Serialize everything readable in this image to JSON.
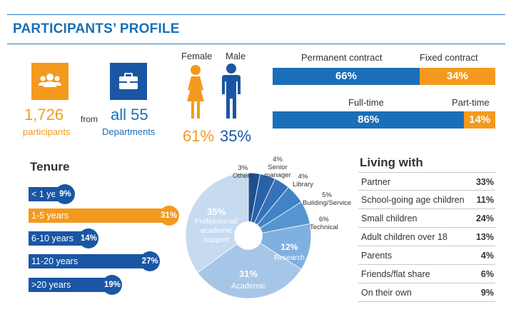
{
  "title": "PARTICIPANTS’ PROFILE",
  "colors": {
    "blue": "#1a6fb8",
    "dark_blue": "#1a56a4",
    "orange": "#f39a1e"
  },
  "participants": {
    "count": "1,726",
    "count_label": "participants",
    "from": "from",
    "departments": "all 55",
    "departments_label": "Departments"
  },
  "gender": {
    "female_label": "Female",
    "male_label": "Male",
    "female_pct": "61%",
    "male_pct": "35%"
  },
  "contract": {
    "permanent_label": "Permanent contract",
    "fixed_label": "Fixed contract",
    "permanent": 66,
    "fixed": 34,
    "permanent_text": "66%",
    "fixed_text": "34%"
  },
  "hours": {
    "full_label": "Full-time",
    "part_label": "Part-time",
    "full": 86,
    "part": 14,
    "full_text": "86%",
    "part_text": "14%"
  },
  "tenure": {
    "title": "Tenure",
    "items": [
      {
        "label": "< 1 year",
        "value": 9,
        "text": "9%"
      },
      {
        "label": "1-5 years",
        "value": 31,
        "text": "31%"
      },
      {
        "label": "6-10 years",
        "value": 14,
        "text": "14%"
      },
      {
        "label": "11-20 years",
        "value": 27,
        "text": "27%"
      },
      {
        "label": ">20 years",
        "value": 19,
        "text": "19%"
      }
    ]
  },
  "roles": {
    "others": {
      "pct": "3%",
      "label": "Others",
      "value": 3
    },
    "senior": {
      "pct": "4%",
      "label": "Senior manager",
      "value": 4
    },
    "library": {
      "pct": "4%",
      "label": "Library",
      "value": 4
    },
    "building": {
      "pct": "5%",
      "label": "Building/Service",
      "value": 5
    },
    "technical": {
      "pct": "6%",
      "label": "Technical",
      "value": 6
    },
    "research": {
      "pct": "12%",
      "label": "Research",
      "value": 12
    },
    "academic": {
      "pct": "31%",
      "label": "Academic",
      "value": 31
    },
    "professional": {
      "pct": "35%",
      "label": "Professional/ academic support",
      "value": 35
    }
  },
  "living": {
    "title": "Living with",
    "rows": [
      {
        "label": "Partner",
        "value": "33%"
      },
      {
        "label": "School-going age children",
        "value": "11%"
      },
      {
        "label": "Small children",
        "value": "24%"
      },
      {
        "label": "Adult children over 18",
        "value": "13%"
      },
      {
        "label": "Parents",
        "value": "4%"
      },
      {
        "label": "Friends/flat share",
        "value": "6%"
      },
      {
        "label": "On their own",
        "value": "9%"
      }
    ]
  }
}
